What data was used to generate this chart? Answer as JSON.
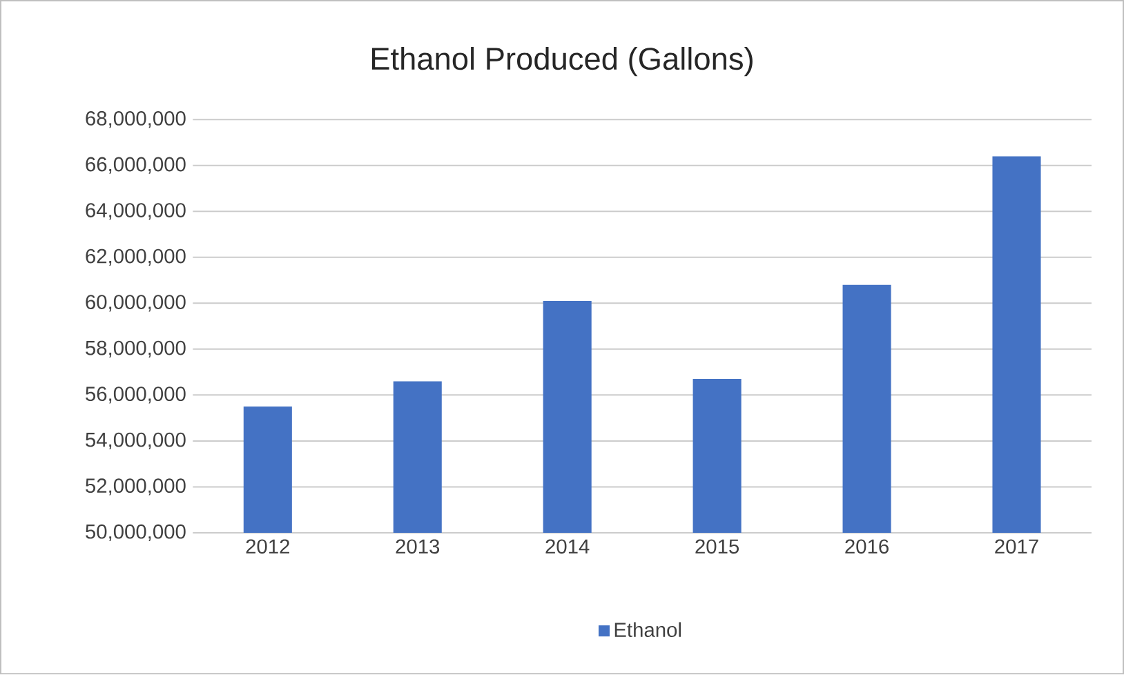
{
  "chart_data": {
    "type": "bar",
    "title": "Ethanol Produced (Gallons)",
    "categories": [
      "2012",
      "2013",
      "2014",
      "2015",
      "2016",
      "2017"
    ],
    "series": [
      {
        "name": "Ethanol",
        "color": "#4472c4",
        "values": [
          55500000,
          56600000,
          60100000,
          56700000,
          60800000,
          66400000
        ]
      }
    ],
    "ylim": [
      50000000,
      68000000
    ],
    "yticks": [
      {
        "value": 50000000,
        "label": "50,000,000"
      },
      {
        "value": 52000000,
        "label": "52,000,000"
      },
      {
        "value": 54000000,
        "label": "54,000,000"
      },
      {
        "value": 56000000,
        "label": "56,000,000"
      },
      {
        "value": 58000000,
        "label": "58,000,000"
      },
      {
        "value": 60000000,
        "label": "60,000,000"
      },
      {
        "value": 62000000,
        "label": "62,000,000"
      },
      {
        "value": 64000000,
        "label": "64,000,000"
      },
      {
        "value": 66000000,
        "label": "66,000,000"
      },
      {
        "value": 68000000,
        "label": "68,000,000"
      }
    ],
    "grid": "y",
    "legend": "bottom"
  }
}
